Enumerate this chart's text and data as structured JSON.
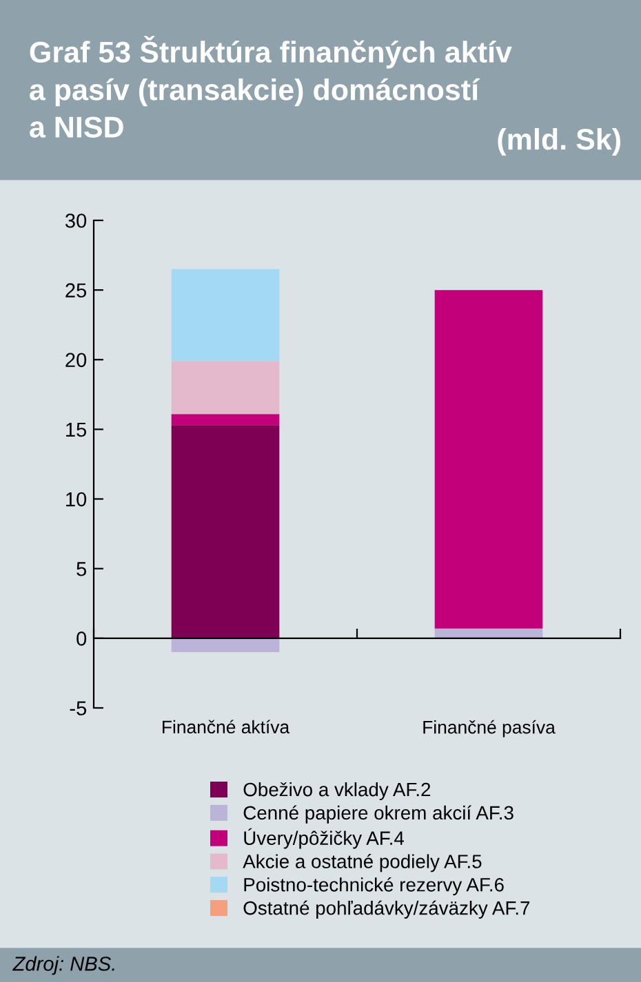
{
  "chart_data": {
    "type": "bar",
    "title": "Graf 53 Štruktúra finančných aktív\na pasív (transakcie) domácností\na NISD",
    "subtitle": "(mld. Sk)",
    "categories": [
      "Finančné aktíva",
      "Finančné pasíva"
    ],
    "stacked": true,
    "series": [
      {
        "name": "Obeživo a vklady AF.2",
        "color": "#7e0055",
        "values": [
          15.3,
          null
        ]
      },
      {
        "name": "Cenné papiere okrem akcií AF.3",
        "color": "#bcb3d8",
        "values": [
          -1.0,
          0.7
        ]
      },
      {
        "name": "Úvery/pôžičky AF.4",
        "color": "#c2007a",
        "values": [
          0.8,
          24.3
        ]
      },
      {
        "name": "Akcie a ostatné podiely AF.5",
        "color": "#e5b9cc",
        "values": [
          3.8,
          null
        ]
      },
      {
        "name": "Poistno-technické rezervy AF.6",
        "color": "#a3d9f2",
        "values": [
          6.6,
          null
        ]
      },
      {
        "name": "Ostatné pohľadávky/záväzky AF.7",
        "color": "#f4a07e",
        "values": [
          null,
          null
        ]
      }
    ],
    "ylim": [
      -5,
      30
    ],
    "yticks": [
      -5,
      0,
      5,
      10,
      15,
      20,
      25,
      30
    ],
    "legend": "bottom",
    "annotations": [
      "Zdroj: NBS."
    ]
  }
}
